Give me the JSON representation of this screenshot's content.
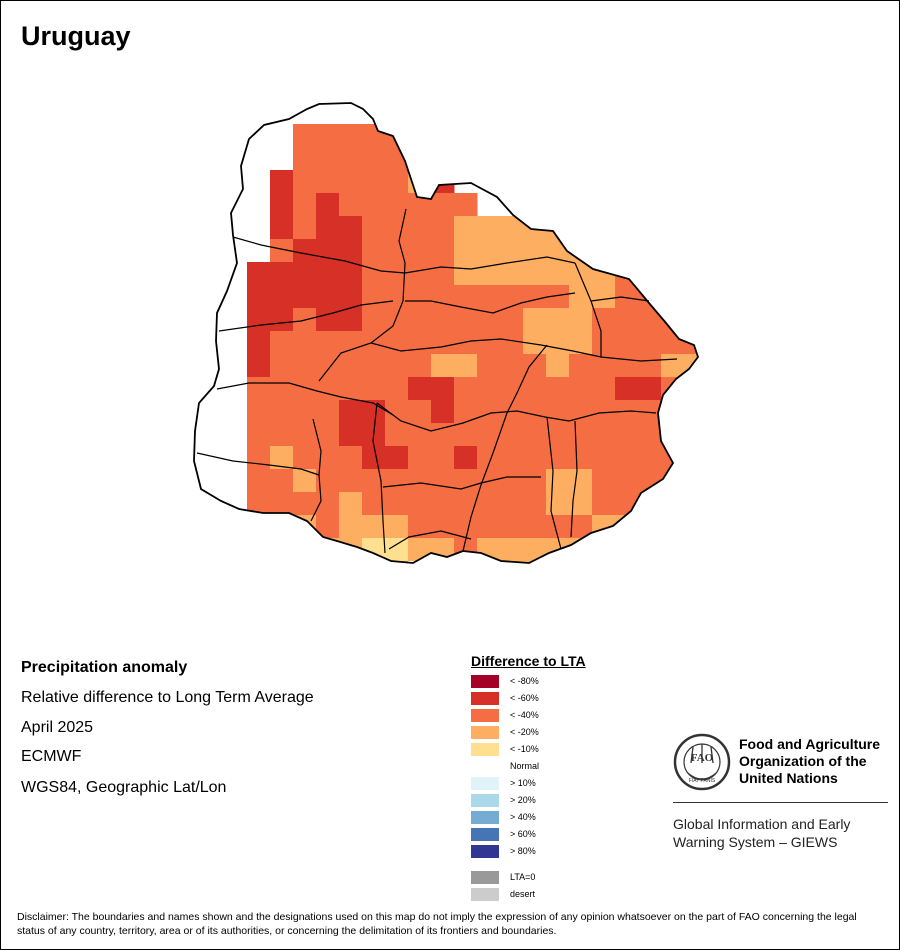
{
  "map": {
    "title": "Uruguay",
    "info": {
      "title": "Precipitation anomaly",
      "subtitle": "Relative difference to Long Term Average",
      "period": "April 2025",
      "model": "ECMWF",
      "projection": "WGS84, Geographic Lat/Lon"
    }
  },
  "legend": {
    "title": "Difference to LTA",
    "classes": [
      {
        "label": "< -80%",
        "color": "#a50026"
      },
      {
        "label": "< -60%",
        "color": "#d73027"
      },
      {
        "label": "< -40%",
        "color": "#f46d43"
      },
      {
        "label": "< -20%",
        "color": "#fdae61"
      },
      {
        "label": "< -10%",
        "color": "#fee090"
      },
      {
        "label": "Normal",
        "color": "#ffffff"
      },
      {
        "label": "> 10%",
        "color": "#e0f3f8"
      },
      {
        "label": "> 20%",
        "color": "#abd9e9"
      },
      {
        "label": "> 40%",
        "color": "#74add1"
      },
      {
        "label": "> 60%",
        "color": "#4575b4"
      },
      {
        "label": "> 80%",
        "color": "#313695"
      }
    ],
    "extras": [
      {
        "label": "LTA=0",
        "color": "#999999"
      },
      {
        "label": "desert",
        "color": "#cccccc"
      }
    ]
  },
  "branding": {
    "emblem_text": "FAO",
    "emblem_motto": "FIAT PANIS",
    "org_name_lines": [
      "Food and Agriculture",
      "Organization of the",
      "United Nations"
    ],
    "system_name_lines": [
      "Global Information and Early",
      "Warning System – GIEWS"
    ]
  },
  "disclaimer": "Disclaimer: The boundaries and names shown and the designations used on this map do not imply the expression of any opinion whatsoever on the part of FAO concerning the legal status of any country, territory, area or of its authorities, or concerning the delimitation of its frontiers and boundaries.",
  "colors": {
    "deep_dry": "#d73027",
    "dry": "#f46d43",
    "moderate": "#fdae61",
    "slight": "#fee090",
    "normal": "#ffffff",
    "border": "#000000"
  }
}
